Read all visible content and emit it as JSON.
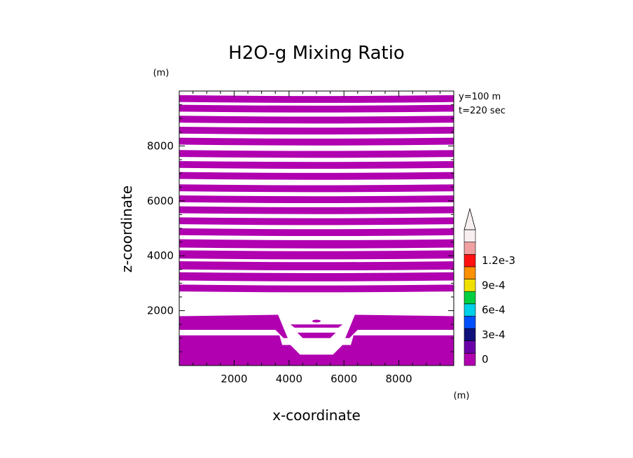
{
  "chart_data": {
    "type": "heatmap",
    "title": "H2O-g Mixing Ratio",
    "xlabel": "x-coordinate",
    "ylabel": "z-coordinate",
    "x_unit": "(m)",
    "z_unit": "(m)",
    "annotations": [
      "y=100 m",
      "t=220 sec"
    ],
    "xlim": [
      0,
      10000
    ],
    "zlim": [
      0,
      10000
    ],
    "x_ticks": [
      2000,
      4000,
      6000,
      8000
    ],
    "z_ticks": [
      2000,
      4000,
      6000,
      8000
    ],
    "x_tick_labels": [
      "2000",
      "4000",
      "6000",
      "8000"
    ],
    "z_tick_labels": [
      "2000",
      "4000",
      "6000",
      "8000"
    ],
    "colorbar": {
      "levels": [
        0,
        0.00015,
        0.0003,
        0.00045,
        0.0006,
        0.00075,
        0.0009,
        0.00105,
        0.0012,
        0.00135
      ],
      "colors": [
        "#b000b0",
        "#6a00a8",
        "#10107a",
        "#0050ff",
        "#00d0e8",
        "#00d040",
        "#f0e000",
        "#ff9000",
        "#ff1010",
        "#f0a0a0",
        "#f8f0f0"
      ],
      "labels": [
        "0",
        "3e-4",
        "6e-4",
        "9e-4",
        "1.2e-3"
      ],
      "label_values": [
        0,
        0.0003,
        0.0006,
        0.0009,
        0.0012
      ],
      "extend": "max"
    },
    "field": {
      "filled_color": "#b000b0",
      "empty_color": "#ffffff",
      "horizontal_bands_z": [
        [
          2700,
          2950
        ],
        [
          3100,
          3400
        ],
        [
          3500,
          3800
        ],
        [
          3900,
          4200
        ],
        [
          4300,
          4600
        ],
        [
          4750,
          5000
        ],
        [
          5150,
          5400
        ],
        [
          5550,
          5800
        ],
        [
          5950,
          6200
        ],
        [
          6350,
          6600
        ],
        [
          6800,
          7050
        ],
        [
          7200,
          7450
        ],
        [
          7600,
          7850
        ],
        [
          8050,
          8300
        ],
        [
          8450,
          8700
        ],
        [
          8850,
          9100
        ],
        [
          9250,
          9500
        ],
        [
          9600,
          9850
        ]
      ],
      "band_lower": [
        [
          1300,
          1850
        ]
      ],
      "ground_band": [
        [
          0,
          1100
        ]
      ]
    }
  }
}
